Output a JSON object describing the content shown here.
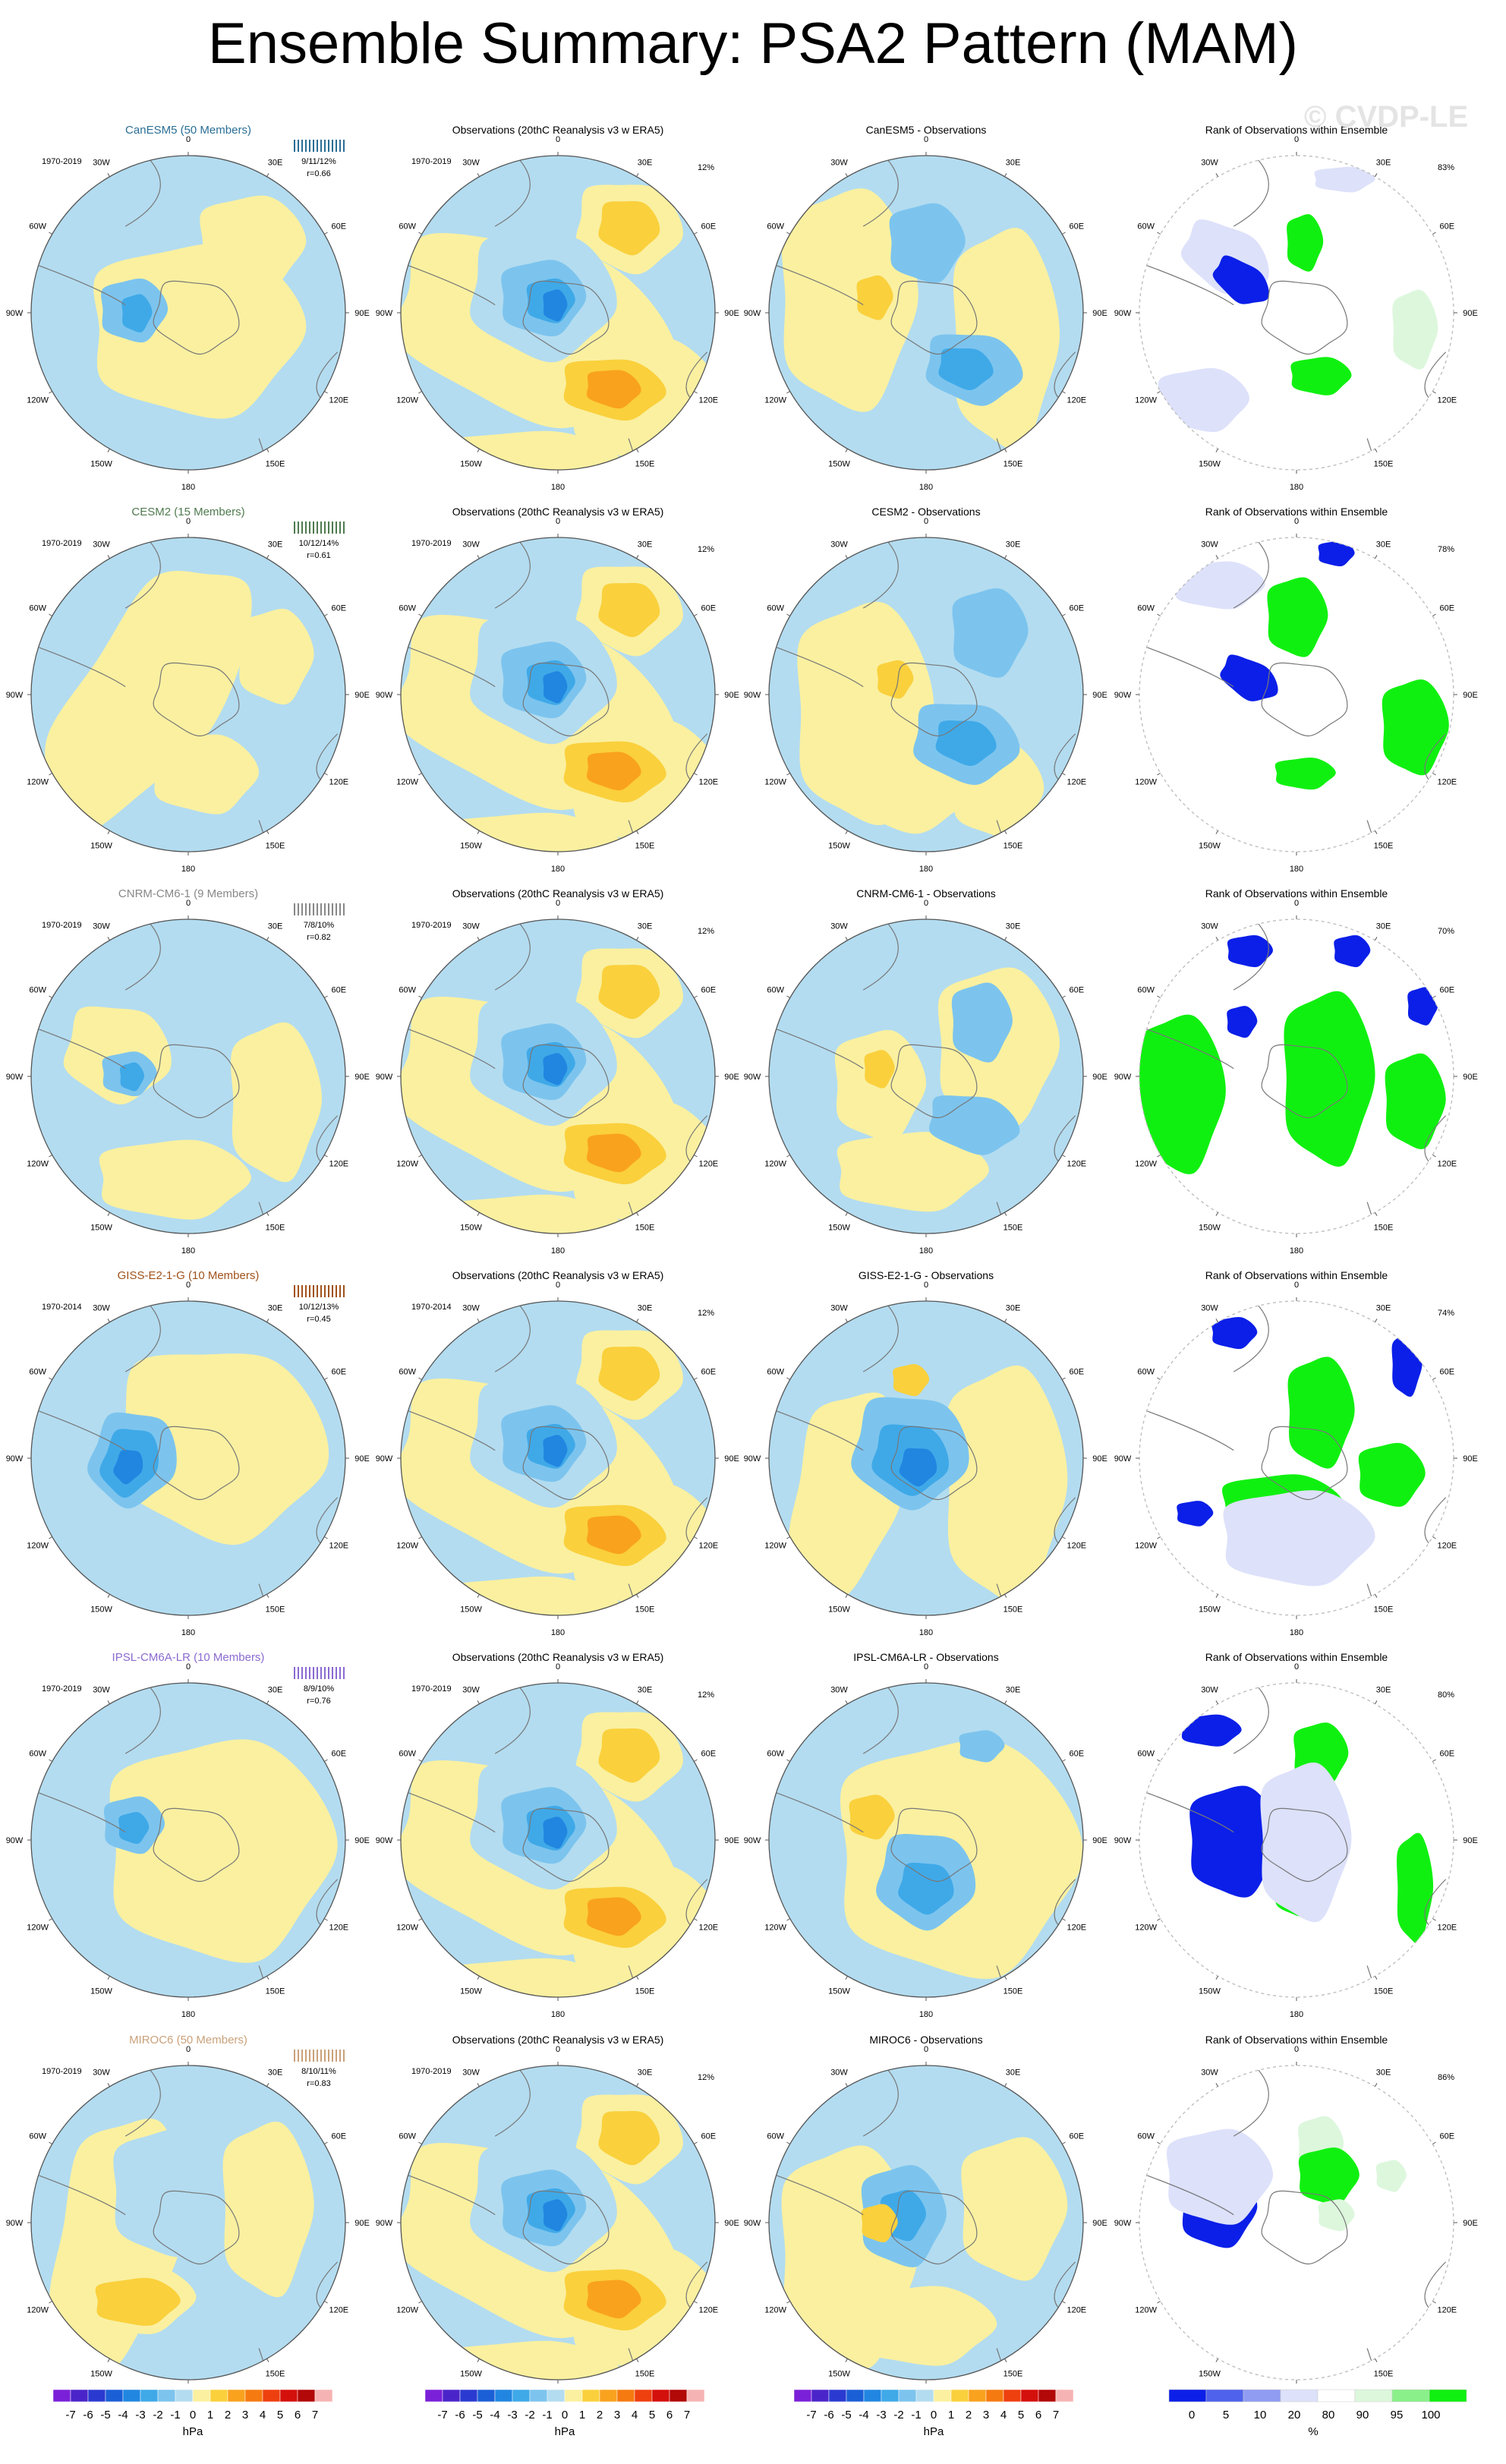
{
  "title": "Ensemble Summary: PSA2 Pattern (MAM)",
  "watermark": "© CVDP-LE",
  "colors": {
    "ocean_light_blue": "#b3dcf0",
    "pale_yellow": "#faf0a0",
    "contour_pos": [
      "#faf0a0",
      "#fad03c",
      "#f9a21e",
      "#f57a10",
      "#ee3f0f",
      "#d4100c",
      "#b20808",
      "#f6b3b3"
    ],
    "contour_neg": [
      "#b3dcf0",
      "#7cc4ee",
      "#3fa9e8",
      "#2086e0",
      "#1b5fd6",
      "#2a3ad1",
      "#4a24c9",
      "#7a20d8"
    ],
    "rank_blue": "#0b1fe8",
    "rank_green": "#10f010",
    "rank_light_blue": "#dde1fa",
    "rank_light_green": "#ddf7dd",
    "model_label_colors": [
      "#2a6e95",
      "#4f7a4f",
      "#888888",
      "#a0521b",
      "#8a6ad0",
      "#caa17a"
    ]
  },
  "models": [
    {
      "name": "CanESM5 (50 Members)",
      "period": "1970-2019",
      "stats": "9/11/12%",
      "r": "r=0.66",
      "diff_title": "CanESM5 - Observations",
      "pct": "83%"
    },
    {
      "name": "CESM2 (15 Members)",
      "period": "1970-2019",
      "stats": "10/12/14%",
      "r": "r=0.61",
      "diff_title": "CESM2 - Observations",
      "pct": "78%"
    },
    {
      "name": "CNRM-CM6-1 (9 Members)",
      "period": "1970-2019",
      "stats": "7/8/10%",
      "r": "r=0.82",
      "diff_title": "CNRM-CM6-1 - Observations",
      "pct": "70%"
    },
    {
      "name": "GISS-E2-1-G (10 Members)",
      "period": "1970-2014",
      "stats": "10/12/13%",
      "r": "r=0.45",
      "diff_title": "GISS-E2-1-G - Observations",
      "pct": "74%"
    },
    {
      "name": "IPSL-CM6A-LR (10 Members)",
      "period": "1970-2019",
      "stats": "8/9/10%",
      "r": "r=0.76",
      "diff_title": "IPSL-CM6A-LR - Observations",
      "pct": "80%"
    },
    {
      "name": "MIROC6 (50 Members)",
      "period": "1970-2019",
      "stats": "8/10/11%",
      "r": "r=0.83",
      "diff_title": "MIROC6 - Observations",
      "pct": "86%"
    }
  ],
  "obs_title": "Observations (20thC Reanalysis v3 w ERA5)",
  "obs_pct": "12%",
  "rank_title": "Rank of Observations within Ensemble",
  "lon_labels": [
    "0",
    "30E",
    "60E",
    "90E",
    "120E",
    "150E",
    "180",
    "150W",
    "120W",
    "90W",
    "60W",
    "30W"
  ],
  "colorbar": {
    "hpa_ticks": [
      "-7",
      "-6",
      "-5",
      "-4",
      "-3",
      "-2",
      "-1",
      "0",
      "1",
      "2",
      "3",
      "4",
      "5",
      "6",
      "7"
    ],
    "hpa_unit": "hPa",
    "rank_ticks": [
      "0",
      "5",
      "10",
      "20",
      "80",
      "90",
      "95",
      "100"
    ],
    "rank_unit": "%"
  },
  "chart_data": [
    {
      "type": "heatmap",
      "title": "CanESM5 (50 Members)",
      "subtitle": "1970-2019",
      "annotations": [
        "9/11/12%",
        "r=0.66"
      ],
      "units": "hPa",
      "projection": "south polar stereographic",
      "value_range": [
        -7,
        7
      ]
    },
    {
      "type": "heatmap",
      "title": "Observations (20thC Reanalysis v3 w ERA5)",
      "subtitle": "1970-2019",
      "annotations": [
        "12%"
      ],
      "units": "hPa",
      "projection": "south polar stereographic",
      "value_range": [
        -7,
        7
      ]
    },
    {
      "type": "heatmap",
      "title": "CanESM5 - Observations",
      "units": "hPa",
      "value_range": [
        -7,
        7
      ]
    },
    {
      "type": "heatmap",
      "title": "Rank of Observations within Ensemble",
      "annotations": [
        "83%"
      ],
      "units": "%",
      "levels": [
        0,
        5,
        10,
        20,
        80,
        90,
        95,
        100
      ]
    },
    {
      "type": "heatmap",
      "title": "CESM2 (15 Members)",
      "subtitle": "1970-2019",
      "annotations": [
        "10/12/14%",
        "r=0.61"
      ],
      "units": "hPa"
    },
    {
      "type": "heatmap",
      "title": "CESM2 - Observations",
      "units": "hPa"
    },
    {
      "type": "heatmap",
      "title": "Rank of Observations within Ensemble",
      "annotations": [
        "78%"
      ],
      "units": "%"
    },
    {
      "type": "heatmap",
      "title": "CNRM-CM6-1 (9 Members)",
      "subtitle": "1970-2019",
      "annotations": [
        "7/8/10%",
        "r=0.82"
      ],
      "units": "hPa"
    },
    {
      "type": "heatmap",
      "title": "CNRM-CM6-1 - Observations",
      "units": "hPa"
    },
    {
      "type": "heatmap",
      "title": "Rank of Observations within Ensemble",
      "annotations": [
        "70%"
      ],
      "units": "%"
    },
    {
      "type": "heatmap",
      "title": "GISS-E2-1-G (10 Members)",
      "subtitle": "1970-2014",
      "annotations": [
        "10/12/13%",
        "r=0.45"
      ],
      "units": "hPa"
    },
    {
      "type": "heatmap",
      "title": "GISS-E2-1-G - Observations",
      "units": "hPa"
    },
    {
      "type": "heatmap",
      "title": "Rank of Observations within Ensemble",
      "annotations": [
        "74%"
      ],
      "units": "%"
    },
    {
      "type": "heatmap",
      "title": "IPSL-CM6A-LR (10 Members)",
      "subtitle": "1970-2019",
      "annotations": [
        "8/9/10%",
        "r=0.76"
      ],
      "units": "hPa"
    },
    {
      "type": "heatmap",
      "title": "IPSL-CM6A-LR - Observations",
      "units": "hPa"
    },
    {
      "type": "heatmap",
      "title": "Rank of Observations within Ensemble",
      "annotations": [
        "80%"
      ],
      "units": "%"
    },
    {
      "type": "heatmap",
      "title": "MIROC6 (50 Members)",
      "subtitle": "1970-2019",
      "annotations": [
        "8/10/11%",
        "r=0.83"
      ],
      "units": "hPa"
    },
    {
      "type": "heatmap",
      "title": "MIROC6 - Observations",
      "units": "hPa"
    },
    {
      "type": "heatmap",
      "title": "Rank of Observations within Ensemble",
      "annotations": [
        "86%"
      ],
      "units": "%"
    }
  ]
}
